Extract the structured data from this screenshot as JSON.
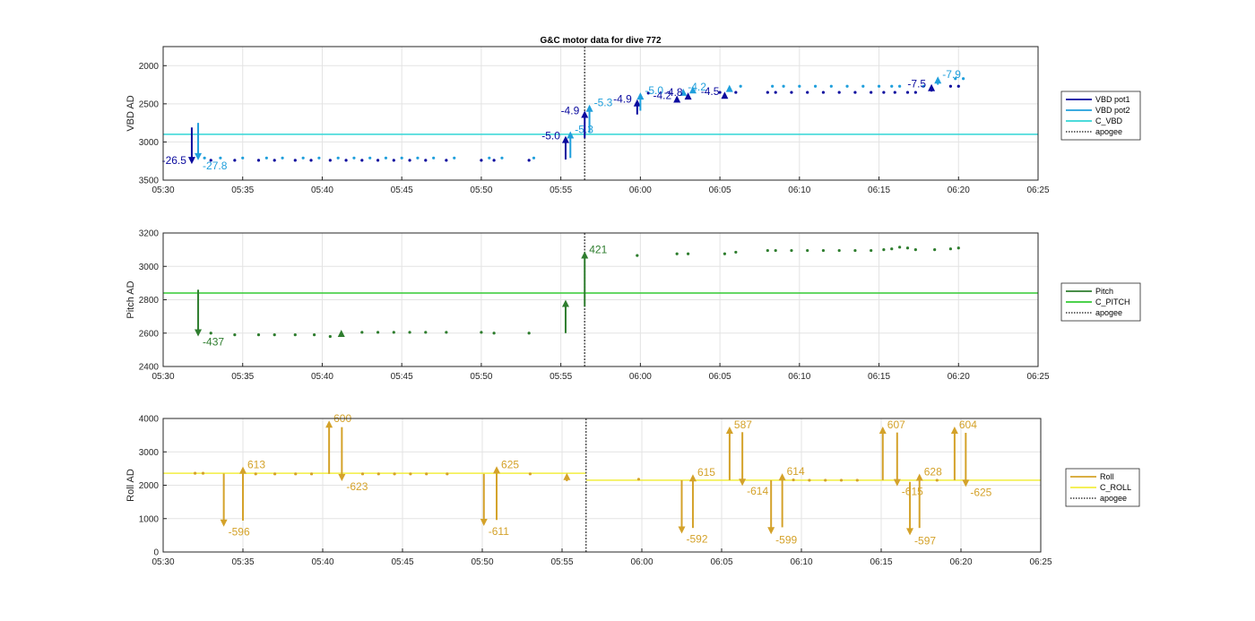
{
  "title": "G&C motor data for dive 772",
  "colors": {
    "vbd1": "#0a0a9e",
    "vbd2": "#1f9fdc",
    "cvbd": "#33d6d6",
    "pitch": "#2e7d2e",
    "cpitch": "#33cc33",
    "roll": "#d4a22a",
    "croll": "#f2ee40",
    "apogee": "#555555",
    "grid": "#e3e3e3"
  },
  "chart_data": [
    {
      "type": "scatter",
      "title": "G&C motor data for dive 772",
      "ylabel": "VBD AD",
      "xlabel": "",
      "y_reversed": true,
      "xlim": [
        "05:30",
        "06:25"
      ],
      "ylim": [
        1750,
        3500
      ],
      "x_ticks": [
        "05:30",
        "05:35",
        "05:40",
        "05:45",
        "05:50",
        "05:55",
        "06:00",
        "06:05",
        "06:10",
        "06:15",
        "06:20",
        "06:25"
      ],
      "y_ticks": [
        2000,
        2500,
        3000,
        3500
      ],
      "grid": true,
      "legend": "right",
      "legend_entries": [
        "VBD pot1",
        "VBD pot2",
        "C_VBD",
        "apogee"
      ],
      "apogee": "05:56.5",
      "reference_lines": [
        {
          "name": "C_VBD",
          "y": 2900
        }
      ],
      "series": [
        {
          "name": "VBD pot1",
          "points": [
            [
              "05:33.0",
              3240
            ],
            [
              "05:34.5",
              3240
            ],
            [
              "05:36.0",
              3240
            ],
            [
              "05:37.0",
              3240
            ],
            [
              "05:38.3",
              3240
            ],
            [
              "05:39.3",
              3240
            ],
            [
              "05:40.5",
              3240
            ],
            [
              "05:41.5",
              3240
            ],
            [
              "05:42.5",
              3240
            ],
            [
              "05:43.5",
              3240
            ],
            [
              "05:44.5",
              3240
            ],
            [
              "05:45.5",
              3240
            ],
            [
              "05:46.5",
              3240
            ],
            [
              "05:47.8",
              3240
            ],
            [
              "05:50.0",
              3240
            ],
            [
              "05:50.8",
              3240
            ],
            [
              "05:53.0",
              3240
            ],
            [
              "06:00.5",
              2360
            ],
            [
              "06:05.0",
              2350
            ],
            [
              "06:06.0",
              2350
            ],
            [
              "06:08.0",
              2350
            ],
            [
              "06:08.5",
              2350
            ],
            [
              "06:09.5",
              2350
            ],
            [
              "06:10.5",
              2350
            ],
            [
              "06:11.5",
              2350
            ],
            [
              "06:12.5",
              2350
            ],
            [
              "06:13.5",
              2350
            ],
            [
              "06:14.5",
              2350
            ],
            [
              "06:15.3",
              2350
            ],
            [
              "06:16.0",
              2350
            ],
            [
              "06:16.8",
              2350
            ],
            [
              "06:17.3",
              2350
            ],
            [
              "06:19.5",
              2270
            ],
            [
              "06:20.0",
              2270
            ]
          ]
        },
        {
          "name": "VBD pot2",
          "points": [
            [
              "05:32.6",
              3210
            ],
            [
              "05:33.6",
              3210
            ],
            [
              "05:35.0",
              3210
            ],
            [
              "05:36.5",
              3210
            ],
            [
              "05:37.5",
              3210
            ],
            [
              "05:38.8",
              3210
            ],
            [
              "05:39.8",
              3210
            ],
            [
              "05:41.0",
              3210
            ],
            [
              "05:42.0",
              3210
            ],
            [
              "05:43.0",
              3210
            ],
            [
              "05:44.0",
              3210
            ],
            [
              "05:45.0",
              3210
            ],
            [
              "05:46.0",
              3210
            ],
            [
              "05:47.0",
              3210
            ],
            [
              "05:48.3",
              3210
            ],
            [
              "05:50.5",
              3210
            ],
            [
              "05:51.3",
              3210
            ],
            [
              "05:53.3",
              3210
            ],
            [
              "06:06.3",
              2270
            ],
            [
              "06:08.3",
              2270
            ],
            [
              "06:09.0",
              2270
            ],
            [
              "06:10.0",
              2270
            ],
            [
              "06:11.0",
              2270
            ],
            [
              "06:12.0",
              2270
            ],
            [
              "06:13.0",
              2270
            ],
            [
              "06:14.0",
              2270
            ],
            [
              "06:15.0",
              2270
            ],
            [
              "06:15.8",
              2270
            ],
            [
              "06:16.3",
              2270
            ],
            [
              "06:17.8",
              2270
            ],
            [
              "06:19.8",
              2170
            ],
            [
              "06:20.3",
              2170
            ]
          ]
        }
      ],
      "moves": [
        {
          "series": "VBD pot1",
          "x": "05:31.8",
          "y0": 2810,
          "y1": 3290,
          "label": "-26.5"
        },
        {
          "series": "VBD pot2",
          "x": "05:32.2",
          "y0": 2750,
          "y1": 3240,
          "label": "-27.8"
        },
        {
          "series": "VBD pot1",
          "x": "05:55.3",
          "y0": 3230,
          "y1": 2920,
          "label": "-5.0"
        },
        {
          "series": "VBD pot2",
          "x": "05:55.6",
          "y0": 3210,
          "y1": 2860,
          "label": "-5.3"
        },
        {
          "series": "VBD pot1",
          "x": "05:56.5",
          "y0": 2950,
          "y1": 2590,
          "label": "-4.9"
        },
        {
          "series": "VBD pot2",
          "x": "05:56.8",
          "y0": 2880,
          "y1": 2510,
          "label": "-5.3"
        },
        {
          "series": "VBD pot1",
          "x": "05:59.8",
          "y0": 2640,
          "y1": 2440,
          "label": "-4.9"
        },
        {
          "series": "VBD pot2",
          "x": "06:00.0",
          "y0": 2590,
          "y1": 2350,
          "label": "-5.0"
        },
        {
          "series": "VBD pot1",
          "x": "06:02.3",
          "y0": 2460,
          "y1": 2390,
          "label": "-4.2"
        },
        {
          "series": "VBD pot2",
          "x": "06:02.7",
          "y0": 2380,
          "y1": 2300,
          "label": "-4.2"
        },
        {
          "series": "VBD pot1",
          "x": "06:03.0",
          "y0": 2420,
          "y1": 2350,
          "label": "-4.8"
        },
        {
          "series": "VBD pot2",
          "x": "06:03.3",
          "y0": 2340,
          "y1": 2270,
          "label": ""
        },
        {
          "series": "VBD pot1",
          "x": "06:05.3",
          "y0": 2400,
          "y1": 2340,
          "label": "-4.5"
        },
        {
          "series": "VBD pot2",
          "x": "06:05.6",
          "y0": 2320,
          "y1": 2250,
          "label": ""
        },
        {
          "series": "VBD pot1",
          "x": "06:18.3",
          "y0": 2340,
          "y1": 2240,
          "label": "-7.5"
        },
        {
          "series": "VBD pot2",
          "x": "06:18.7",
          "y0": 2250,
          "y1": 2140,
          "label": "-7.9"
        }
      ]
    },
    {
      "type": "scatter",
      "ylabel": "Pitch AD",
      "xlabel": "",
      "xlim": [
        "05:30",
        "06:25"
      ],
      "ylim": [
        2400,
        3200
      ],
      "x_ticks": [
        "05:30",
        "05:35",
        "05:40",
        "05:45",
        "05:50",
        "05:55",
        "06:00",
        "06:05",
        "06:10",
        "06:15",
        "06:20",
        "06:25"
      ],
      "y_ticks": [
        2400,
        2600,
        2800,
        3000,
        3200
      ],
      "grid": true,
      "legend": "right",
      "legend_entries": [
        "Pitch",
        "C_PITCH",
        "apogee"
      ],
      "apogee": "05:56.5",
      "reference_lines": [
        {
          "name": "C_PITCH",
          "y": 2840
        }
      ],
      "series": [
        {
          "name": "Pitch",
          "points": [
            [
              "05:33.0",
              2600
            ],
            [
              "05:34.5",
              2590
            ],
            [
              "05:36.0",
              2590
            ],
            [
              "05:37.0",
              2590
            ],
            [
              "05:38.3",
              2590
            ],
            [
              "05:39.5",
              2590
            ],
            [
              "05:40.5",
              2580
            ],
            [
              "05:42.5",
              2605
            ],
            [
              "05:43.5",
              2605
            ],
            [
              "05:44.5",
              2605
            ],
            [
              "05:45.5",
              2605
            ],
            [
              "05:46.5",
              2605
            ],
            [
              "05:47.8",
              2605
            ],
            [
              "05:50.0",
              2605
            ],
            [
              "05:50.8",
              2600
            ],
            [
              "05:53.0",
              2600
            ],
            [
              "05:59.8",
              3065
            ],
            [
              "06:02.3",
              3075
            ],
            [
              "06:03.0",
              3075
            ],
            [
              "06:05.3",
              3075
            ],
            [
              "06:06.0",
              3085
            ],
            [
              "06:08.0",
              3095
            ],
            [
              "06:08.5",
              3095
            ],
            [
              "06:09.5",
              3095
            ],
            [
              "06:10.5",
              3095
            ],
            [
              "06:11.5",
              3095
            ],
            [
              "06:12.5",
              3095
            ],
            [
              "06:13.5",
              3095
            ],
            [
              "06:14.5",
              3095
            ],
            [
              "06:15.3",
              3100
            ],
            [
              "06:15.8",
              3105
            ],
            [
              "06:16.3",
              3115
            ],
            [
              "06:16.8",
              3110
            ],
            [
              "06:17.3",
              3100
            ],
            [
              "06:18.5",
              3100
            ],
            [
              "06:19.5",
              3105
            ],
            [
              "06:20.0",
              3110
            ]
          ]
        }
      ],
      "moves": [
        {
          "x": "05:32.2",
          "y0": 2860,
          "y1": 2580,
          "label": "-437"
        },
        {
          "x": "05:41.2",
          "y0": 2590,
          "y1": 2620,
          "label": ""
        },
        {
          "x": "05:55.3",
          "y0": 2600,
          "y1": 2800,
          "label": ""
        },
        {
          "x": "05:56.5",
          "y0": 2760,
          "y1": 3090,
          "label": "421"
        }
      ]
    },
    {
      "type": "scatter",
      "ylabel": "Roll AD",
      "xlabel": "",
      "xlim": [
        "05:30",
        "06:25"
      ],
      "ylim": [
        0,
        4000
      ],
      "x_ticks": [
        "05:30",
        "05:35",
        "05:40",
        "05:45",
        "05:50",
        "05:55",
        "06:00",
        "06:05",
        "06:10",
        "06:15",
        "06:20",
        "06:25"
      ],
      "y_ticks": [
        0,
        1000,
        2000,
        3000,
        4000
      ],
      "grid": true,
      "legend": "right",
      "legend_entries": [
        "Roll",
        "C_ROLL",
        "apogee"
      ],
      "apogee": "05:56.5",
      "reference_lines": [
        {
          "name": "C_ROLL",
          "x_from": "05:30",
          "x_to": "05:56.5",
          "y": 2360
        },
        {
          "name": "C_ROLL",
          "x_from": "05:56.5",
          "x_to": "06:25",
          "y": 2150
        }
      ],
      "series": [
        {
          "name": "Roll",
          "points": [
            [
              "05:32.0",
              2360
            ],
            [
              "05:32.5",
              2360
            ],
            [
              "05:35.8",
              2340
            ],
            [
              "05:37.0",
              2340
            ],
            [
              "05:38.3",
              2340
            ],
            [
              "05:39.3",
              2340
            ],
            [
              "05:42.5",
              2340
            ],
            [
              "05:43.5",
              2340
            ],
            [
              "05:44.5",
              2340
            ],
            [
              "05:45.5",
              2340
            ],
            [
              "05:46.5",
              2340
            ],
            [
              "05:47.8",
              2340
            ],
            [
              "05:53.0",
              2340
            ],
            [
              "05:59.8",
              2180
            ],
            [
              "06:09.5",
              2160
            ],
            [
              "06:10.5",
              2150
            ],
            [
              "06:11.5",
              2150
            ],
            [
              "06:12.5",
              2150
            ],
            [
              "06:13.5",
              2150
            ],
            [
              "06:18.5",
              2150
            ]
          ]
        }
      ],
      "moves": [
        {
          "x": "05:33.8",
          "y0": 2350,
          "y1": 760,
          "label": "-596"
        },
        {
          "x": "05:35.0",
          "y0": 940,
          "y1": 2560,
          "label": "613"
        },
        {
          "x": "05:40.4",
          "y0": 2340,
          "y1": 3940,
          "label": "600"
        },
        {
          "x": "05:41.2",
          "y0": 3740,
          "y1": 2120,
          "label": "-623"
        },
        {
          "x": "05:50.1",
          "y0": 2340,
          "y1": 780,
          "label": "-611"
        },
        {
          "x": "05:50.9",
          "y0": 960,
          "y1": 2570,
          "label": "625"
        },
        {
          "x": "05:55.3",
          "y0": 2120,
          "y1": 2370,
          "label": ""
        },
        {
          "x": "06:02.5",
          "y0": 2150,
          "y1": 550,
          "label": "-592"
        },
        {
          "x": "06:03.2",
          "y0": 720,
          "y1": 2330,
          "label": "615"
        },
        {
          "x": "06:05.5",
          "y0": 2150,
          "y1": 3760,
          "label": "587"
        },
        {
          "x": "06:06.3",
          "y0": 3590,
          "y1": 1980,
          "label": "-614"
        },
        {
          "x": "06:08.1",
          "y0": 2150,
          "y1": 530,
          "label": "-599"
        },
        {
          "x": "06:08.8",
          "y0": 740,
          "y1": 2360,
          "label": "614"
        },
        {
          "x": "06:15.1",
          "y0": 2150,
          "y1": 3760,
          "label": "607"
        },
        {
          "x": "06:16.0",
          "y0": 3580,
          "y1": 1970,
          "label": "-615"
        },
        {
          "x": "06:16.8",
          "y0": 2100,
          "y1": 500,
          "label": "-597"
        },
        {
          "x": "06:17.4",
          "y0": 720,
          "y1": 2350,
          "label": "628"
        },
        {
          "x": "06:19.6",
          "y0": 2150,
          "y1": 3760,
          "label": "604"
        },
        {
          "x": "06:20.3",
          "y0": 3570,
          "y1": 1950,
          "label": "-625"
        }
      ]
    }
  ]
}
